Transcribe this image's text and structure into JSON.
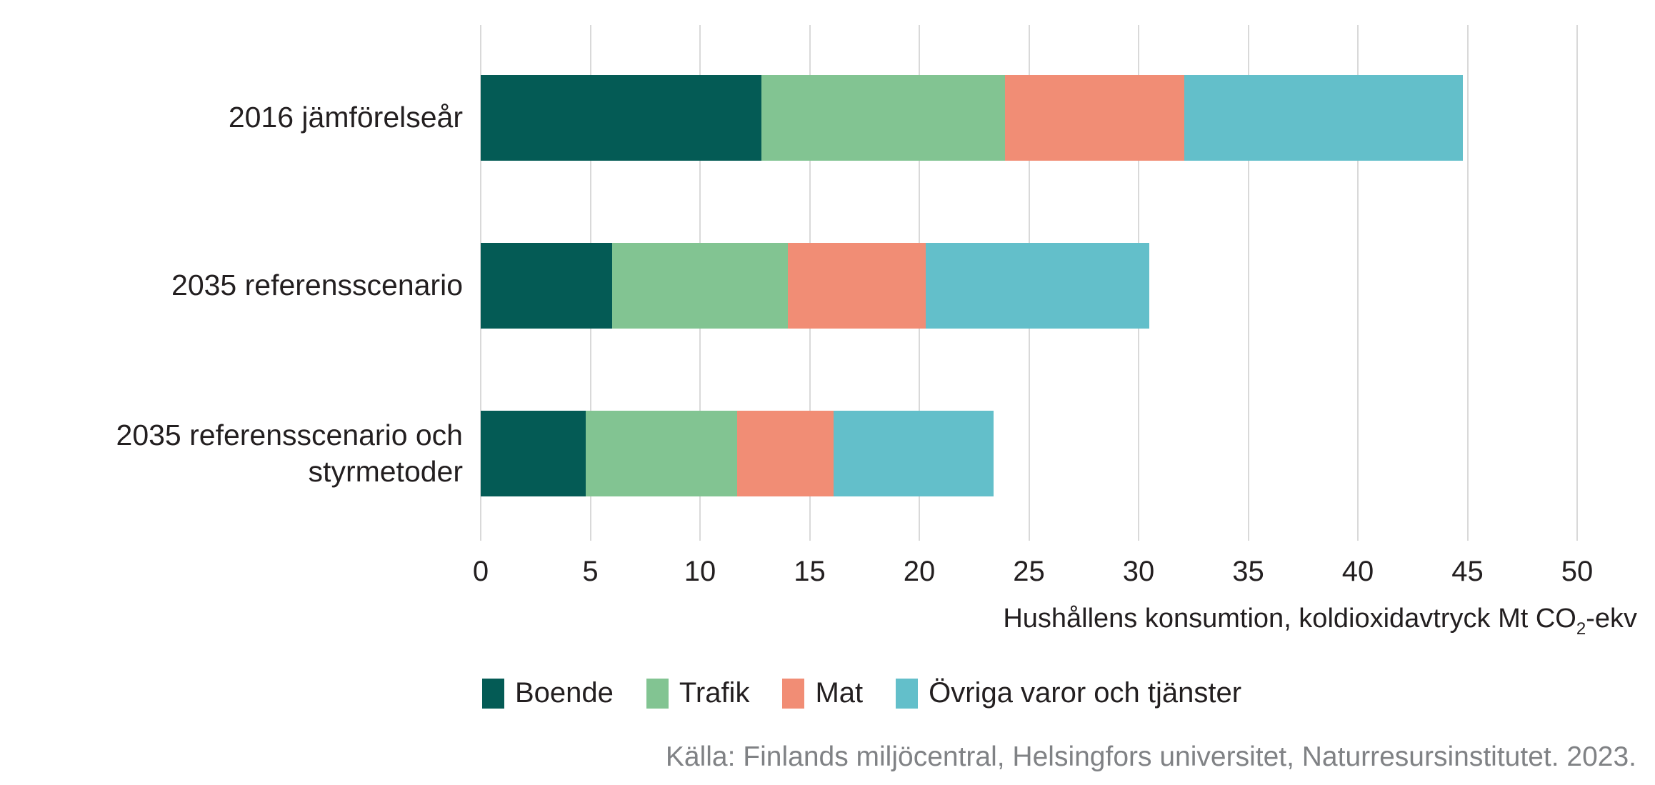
{
  "chart_data": {
    "type": "bar",
    "orientation": "horizontal",
    "stacked": true,
    "grid": true,
    "categories": [
      "2016 jämförelseår",
      "2035 referensscenario",
      "2035 referensscenario och styrmetoder"
    ],
    "series": [
      {
        "name": "Boende",
        "color": "#045b55",
        "values": [
          12.8,
          6.0,
          4.8
        ]
      },
      {
        "name": "Trafik",
        "color": "#82c492",
        "values": [
          11.1,
          8.0,
          6.9
        ]
      },
      {
        "name": "Mat",
        "color": "#f18d75",
        "values": [
          8.2,
          6.3,
          4.4
        ]
      },
      {
        "name": "Övriga varor och tjänster",
        "color": "#63bfca",
        "values": [
          12.7,
          10.2,
          7.3
        ]
      }
    ],
    "totals": [
      44.8,
      30.5,
      23.4
    ],
    "x_ticks": [
      0,
      5,
      10,
      15,
      20,
      25,
      30,
      35,
      40,
      45,
      50
    ],
    "xlim": [
      0,
      50
    ],
    "xlabel": "Hushållens konsumtion, koldioxidavtryck Mt CO2-ekv",
    "xlabel_prefix": "Hushållens konsumtion, koldioxidavtryck Mt CO",
    "xlabel_sub": "2",
    "xlabel_suffix": "-ekv",
    "legend_position": "bottom",
    "source": "Källa: Finlands miljöcentral, Helsingfors universitet, Naturresursinstitutet. 2023.",
    "colors": {
      "gridline": "#d9d9d9",
      "text": "#231f20",
      "source_text": "#808285",
      "background": "#ffffff"
    }
  }
}
